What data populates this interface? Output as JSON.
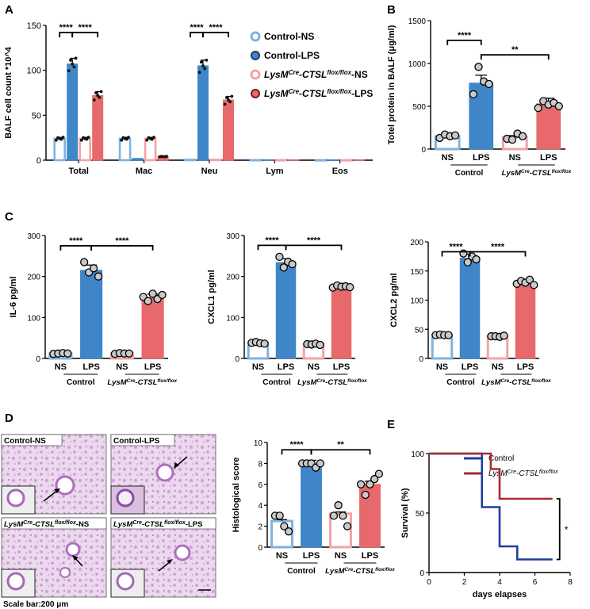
{
  "colors": {
    "light_blue": "#7fb3e0",
    "blue": "#3f86c9",
    "pink": "#f2a3a5",
    "red": "#e8696b",
    "dark_red": "#a82a2e",
    "navy": "#1f3f9e",
    "tissue": "#d8b8dc"
  },
  "panel_labels": {
    "A": "A",
    "B": "B",
    "C": "C",
    "D": "D",
    "E": "E"
  },
  "stars": {
    "four": "****",
    "two": "**",
    "one": "*"
  },
  "groups": {
    "ns": "NS",
    "lps": "LPS",
    "control": "Control",
    "lysm_lys": "LysM",
    "lysm_cre": "Cre",
    "lysm_ctsl": "-CTSL",
    "lysm_flox": "flox/flox"
  },
  "panelA": {
    "legend": [
      {
        "label": "Control-NS"
      },
      {
        "label": "Control-LPS"
      },
      {
        "label": "-NS"
      },
      {
        "label": "-LPS"
      }
    ]
  },
  "panelD": {
    "images": [
      {
        "label": "Control-NS"
      },
      {
        "label": "Control-LPS"
      },
      {
        "label": "-NS"
      },
      {
        "label": "-LPS"
      }
    ],
    "scale_bar": "Scale bar:200 μm"
  },
  "chart_data": [
    {
      "type": "bar",
      "title": "",
      "ylabel": "BALF cell count *10^4",
      "ylim": [
        0,
        150
      ],
      "yticks": [
        0,
        50,
        100,
        150
      ],
      "categories": [
        "Total",
        "Mac",
        "Neu",
        "Lym",
        "Eos"
      ],
      "series": [
        {
          "name": "Control-NS",
          "values": [
            24,
            24,
            0.5,
            0.2,
            0.1
          ]
        },
        {
          "name": "Control-LPS",
          "values": [
            107,
            2,
            105,
            0.5,
            0.2
          ]
        },
        {
          "name": "LysMCre-CTSLflox/flox-NS",
          "values": [
            24,
            24,
            0.5,
            0.2,
            0.1
          ]
        },
        {
          "name": "LysMCre-CTSLflox/flox-LPS",
          "values": [
            72,
            4,
            67,
            0.5,
            0.2
          ]
        }
      ]
    },
    {
      "type": "bar",
      "ylabel": "Totel protein in BALF (μg/ml)",
      "ylim": [
        0,
        1500
      ],
      "yticks": [
        0,
        500,
        1000,
        1500
      ],
      "categories": [
        "Control NS",
        "Control LPS",
        "LysMCre-CTSLflox/flox NS",
        "LysMCre-CTSLflox/flox LPS"
      ],
      "values": [
        150,
        770,
        140,
        530
      ]
    },
    {
      "type": "bar",
      "ylabel": "IL-6 pg/ml",
      "ylim": [
        0,
        300
      ],
      "yticks": [
        0,
        100,
        200,
        300
      ],
      "categories": [
        "Control NS",
        "Control LPS",
        "LysMCre-CTSLflox/flox NS",
        "LysMCre-CTSLflox/flox LPS"
      ],
      "values": [
        12,
        215,
        12,
        148
      ]
    },
    {
      "type": "bar",
      "ylabel": "CXCL1 pg/ml",
      "ylim": [
        0,
        300
      ],
      "yticks": [
        0,
        100,
        200,
        300
      ],
      "categories": [
        "Control NS",
        "Control LPS",
        "LysMCre-CTSLflox/flox NS",
        "LysMCre-CTSLflox/flox LPS"
      ],
      "values": [
        38,
        234,
        35,
        175
      ]
    },
    {
      "type": "bar",
      "ylabel": "CXCL2 pg/ml",
      "ylim": [
        0,
        200
      ],
      "yticks": [
        0,
        50,
        100,
        150,
        200
      ],
      "categories": [
        "Control NS",
        "Control LPS",
        "LysMCre-CTSLflox/flox NS",
        "LysMCre-CTSLflox/flox LPS"
      ],
      "values": [
        40,
        172,
        38,
        130
      ]
    },
    {
      "type": "bar",
      "ylabel": "Histological score",
      "ylim": [
        0,
        10
      ],
      "yticks": [
        0,
        2,
        4,
        6,
        8,
        10
      ],
      "categories": [
        "Control NS",
        "Control LPS",
        "LysMCre-CTSLflox/flox NS",
        "LysMCre-CTSLflox/flox LPS"
      ],
      "values": [
        2.5,
        7.9,
        3.2,
        6.0
      ]
    },
    {
      "type": "line",
      "ylabel": "Survival (%)",
      "xlabel": "days elapses",
      "xlim": [
        0,
        8
      ],
      "ylim": [
        0,
        100
      ],
      "xticks": [
        0,
        2,
        4,
        6,
        8
      ],
      "yticks": [
        0,
        50,
        100
      ],
      "series": [
        {
          "name": "Control",
          "points": [
            [
              0,
              100
            ],
            [
              3,
              100
            ],
            [
              3,
              55
            ],
            [
              4,
              55
            ],
            [
              4,
              22
            ],
            [
              5,
              22
            ],
            [
              5,
              11
            ],
            [
              7,
              11
            ]
          ]
        },
        {
          "name": "LysMCre-CTSLflox/flox",
          "points": [
            [
              0,
              100
            ],
            [
              3.5,
              100
            ],
            [
              3.5,
              87
            ],
            [
              4,
              87
            ],
            [
              4,
              62
            ],
            [
              7,
              62
            ]
          ]
        }
      ]
    }
  ]
}
